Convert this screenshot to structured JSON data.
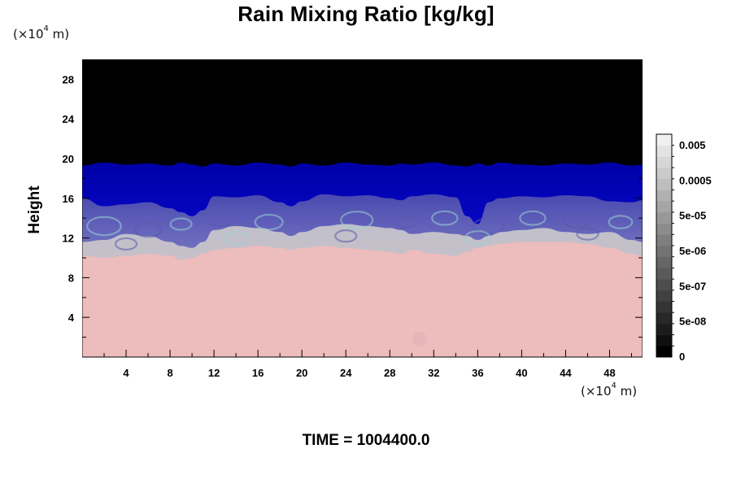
{
  "chart_data": {
    "type": "heatmap",
    "title": "Rain Mixing Ratio [kg/kg]",
    "ylabel": "Height",
    "xlabel": "",
    "y_unit": {
      "prefix": "(×10",
      "exponent": "4",
      "suffix": " m)"
    },
    "x_unit": {
      "prefix": "(×10",
      "exponent": "4",
      "suffix": " m)"
    },
    "xlim": [
      0,
      51
    ],
    "ylim": [
      0,
      30
    ],
    "x_ticks": [
      4,
      8,
      12,
      16,
      20,
      24,
      28,
      32,
      36,
      40,
      44,
      48
    ],
    "y_ticks": [
      4,
      8,
      12,
      16,
      20,
      24,
      28
    ],
    "x_minor_step": 2,
    "y_minor_step": 2,
    "colorbar": {
      "labels": [
        "0",
        "5e-08",
        "5e-07",
        "5e-06",
        "5e-05",
        "0.0005",
        "0.005"
      ],
      "level_colors": [
        "#000000",
        "#0f0f0f",
        "#1c1c1c",
        "#282828",
        "#343434",
        "#414141",
        "#4d4d4d",
        "#5a5a5a",
        "#666666",
        "#737373",
        "#7f7f7f",
        "#8c8c8c",
        "#989898",
        "#a5a5a5",
        "#b1b1b1",
        "#bebebe",
        "#cacaca",
        "#d7d7d7",
        "#e3e3e3",
        "#f0f0f0"
      ]
    },
    "field_colors": {
      "top": "#000000",
      "deep_blue": "#0a0ad2",
      "mid_blue": "#2a2ab8",
      "purple": "#6a6ab8",
      "teal": "#86c4c4",
      "gray": "#bdbdc6",
      "pink": "#edbcbc"
    },
    "profile_x": [
      0,
      2,
      4,
      6,
      8,
      9,
      10,
      11,
      12,
      14,
      16,
      18,
      19,
      20,
      22,
      24,
      26,
      28,
      29,
      30,
      32,
      34,
      35,
      36,
      37,
      38,
      40,
      42,
      44,
      46,
      48,
      50,
      51
    ],
    "layer_tops": {
      "blue_top": [
        19.3,
        19.6,
        19.4,
        19.5,
        19.3,
        19.6,
        19.4,
        19.2,
        19.5,
        19.3,
        19.6,
        19.4,
        19.2,
        19.5,
        19.3,
        19.6,
        19.4,
        19.3,
        19.5,
        19.4,
        19.6,
        19.3,
        19.2,
        19.5,
        19.3,
        19.6,
        19.4,
        19.3,
        19.5,
        19.4,
        19.6,
        19.3,
        19.4
      ],
      "deep_blue_bottom": [
        16.0,
        15.2,
        15.4,
        15.6,
        15.0,
        14.6,
        14.2,
        14.8,
        16.2,
        16.1,
        16.3,
        15.6,
        15.2,
        15.7,
        16.4,
        16.2,
        16.3,
        16.0,
        15.8,
        16.2,
        16.4,
        16.1,
        14.2,
        13.4,
        15.6,
        16.0,
        16.2,
        16.1,
        16.3,
        16.2,
        15.7,
        15.6,
        15.8
      ],
      "purple_bottom": [
        11.6,
        11.8,
        12.4,
        12.2,
        11.6,
        11.2,
        11.0,
        11.6,
        12.8,
        13.2,
        13.0,
        12.6,
        12.2,
        12.6,
        13.2,
        13.4,
        13.2,
        13.0,
        12.8,
        12.4,
        12.6,
        12.4,
        12.2,
        11.8,
        12.2,
        12.6,
        12.8,
        13.0,
        12.6,
        12.4,
        12.6,
        11.8,
        11.6
      ],
      "gray_bottom": [
        10.2,
        10.0,
        10.2,
        10.4,
        10.2,
        9.8,
        10.0,
        10.4,
        10.8,
        11.0,
        11.2,
        11.0,
        10.8,
        11.0,
        11.2,
        11.0,
        10.8,
        10.6,
        10.4,
        10.8,
        10.4,
        10.2,
        10.6,
        11.0,
        11.2,
        11.4,
        11.6,
        11.6,
        11.6,
        11.4,
        11.0,
        10.4,
        10.2
      ]
    },
    "annotation": {
      "prefix": "TIME = ",
      "value": "1004400.0"
    }
  }
}
